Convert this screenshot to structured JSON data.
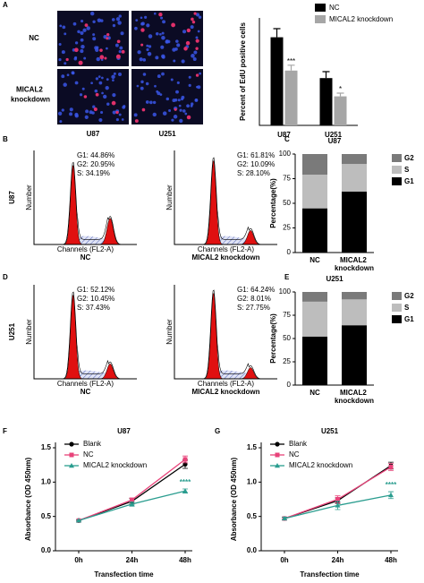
{
  "panel_labels": [
    "A",
    "B",
    "C",
    "D",
    "E",
    "F",
    "G"
  ],
  "microscopy": {
    "row_labels": [
      "NC",
      "MICAL2 knockdown"
    ],
    "col_labels": [
      "U87",
      "U251"
    ]
  },
  "flow": {
    "y_label": "Number",
    "x_label": "Channels (FL2-A)",
    "rows": [
      {
        "row_label": "U87",
        "histograms": [
          {
            "caption": "NC",
            "stats": [
              "G1: 44.86%",
              "G2: 20.95%",
              "S: 34.19%"
            ]
          },
          {
            "caption": "MICAL2 knockdown",
            "stats": [
              "G1: 61.81%",
              "G2: 10.09%",
              "S: 28.10%"
            ]
          }
        ]
      },
      {
        "row_label": "U251",
        "histograms": [
          {
            "caption": "NC",
            "stats": [
              "G1: 52.12%",
              "G2: 10.45%",
              "S: 37.43%"
            ]
          },
          {
            "caption": "MICAL2 knockdown",
            "stats": [
              "G1: 64.24%",
              "G2: 8.01%",
              "S: 27.75%"
            ]
          }
        ]
      }
    ]
  },
  "chart_data": [
    {
      "type": "bar",
      "y_label": "Percent of EdU positive cells",
      "categories": [
        "U87",
        "U251"
      ],
      "ylim": [
        0,
        50
      ],
      "series": [
        {
          "name": "NC",
          "color": "#000000",
          "values": [
            41,
            22
          ],
          "errors": [
            4,
            3
          ]
        },
        {
          "name": "MICAL2 knockdown",
          "color": "#a6a6a6",
          "values": [
            25.5,
            13.5
          ],
          "errors": [
            2.5,
            1.5
          ],
          "annotations": [
            "***",
            "*"
          ]
        }
      ]
    },
    {
      "type": "stacked_bar",
      "title": "U87",
      "y_label": "Percentage(%)",
      "categories": [
        "NC",
        "MICAL2 knockdown"
      ],
      "ylim": [
        0,
        100
      ],
      "yticks": [
        0,
        25,
        50,
        75,
        100
      ],
      "series": [
        {
          "name": "G1",
          "color": "#000000",
          "values": [
            44.86,
            61.81
          ]
        },
        {
          "name": "S",
          "color": "#bdbdbd",
          "values": [
            34.19,
            28.1
          ]
        },
        {
          "name": "G2",
          "color": "#7a7a7a",
          "values": [
            20.95,
            10.09
          ]
        }
      ]
    },
    {
      "type": "stacked_bar",
      "title": "U251",
      "y_label": "Percentage(%)",
      "categories": [
        "NC",
        "MICAL2 knockdown"
      ],
      "ylim": [
        0,
        100
      ],
      "yticks": [
        0,
        25,
        50,
        75,
        100
      ],
      "series": [
        {
          "name": "G1",
          "color": "#000000",
          "values": [
            52.12,
            64.24
          ]
        },
        {
          "name": "S",
          "color": "#bdbdbd",
          "values": [
            37.43,
            27.75
          ]
        },
        {
          "name": "G2",
          "color": "#7a7a7a",
          "values": [
            10.45,
            8.01
          ]
        }
      ]
    },
    {
      "type": "line",
      "title": "U87",
      "y_label": "Absorbance (OD 450nm)",
      "x_label": "Transfection time",
      "categories": [
        "0h",
        "24h",
        "48h"
      ],
      "ylim": [
        0,
        1.5
      ],
      "yticks": [
        {
          "value": 0,
          "label": "0.0"
        },
        0.5,
        {
          "value": 1,
          "label": "1.0"
        },
        1.5
      ],
      "series": [
        {
          "name": "Blank",
          "color": "#000000",
          "values": [
            0.44,
            0.72,
            1.26
          ],
          "errors": [
            0.01,
            0.04,
            0.06
          ]
        },
        {
          "name": "NC",
          "color": "#e8437a",
          "values": [
            0.44,
            0.74,
            1.33
          ],
          "errors": [
            0.01,
            0.03,
            0.05
          ]
        },
        {
          "name": "MICAL2 knockdown",
          "color": "#2a9d8f",
          "values": [
            0.44,
            0.68,
            0.87
          ],
          "errors": [
            0.01,
            0.03,
            0.03
          ],
          "annotations": [
            null,
            null,
            "****"
          ]
        }
      ]
    },
    {
      "type": "line",
      "title": "U251",
      "y_label": "Absorbance (OD 450nm)",
      "x_label": "Transfection time",
      "categories": [
        "0h",
        "24h",
        "48h"
      ],
      "ylim": [
        0,
        1.5
      ],
      "yticks": [
        {
          "value": 0,
          "label": "0.0"
        },
        0.5,
        {
          "value": 1,
          "label": "1.0"
        },
        1.5
      ],
      "series": [
        {
          "name": "Blank",
          "color": "#000000",
          "values": [
            0.47,
            0.73,
            1.24
          ],
          "errors": [
            0.02,
            0.04,
            0.05
          ]
        },
        {
          "name": "NC",
          "color": "#e8437a",
          "values": [
            0.47,
            0.75,
            1.22
          ],
          "errors": [
            0.02,
            0.05,
            0.05
          ]
        },
        {
          "name": "MICAL2 knockdown",
          "color": "#2a9d8f",
          "values": [
            0.47,
            0.66,
            0.81
          ],
          "errors": [
            0.02,
            0.06,
            0.05
          ],
          "annotations": [
            null,
            null,
            "****"
          ]
        }
      ]
    }
  ]
}
